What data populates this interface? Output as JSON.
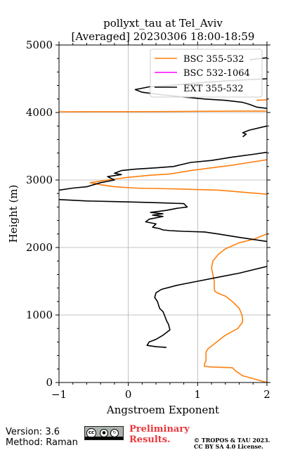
{
  "chart_data": {
    "type": "line",
    "title": "pollyxt_tau at Tel_Aviv",
    "subtitle": "[Averaged] 20230306 18:00-18:59",
    "xlabel": "Angstroem Exponent",
    "ylabel": "Height (m)",
    "xlim": [
      -1,
      2
    ],
    "ylim": [
      0,
      5000
    ],
    "x_ticks": [
      "−1",
      "0",
      "1",
      "2"
    ],
    "y_ticks": [
      "0",
      "1000",
      "2000",
      "3000",
      "4000",
      "5000"
    ],
    "grid": true,
    "legend_position": "top-right",
    "series": [
      {
        "name": "BSC 355-532",
        "color": "#ff7f0e",
        "points": [
          [
            2.0,
            0
          ],
          [
            1.65,
            100
          ],
          [
            1.55,
            170
          ],
          [
            1.5,
            220
          ],
          [
            1.2,
            230
          ],
          [
            1.1,
            240
          ],
          [
            1.1,
            280
          ],
          [
            1.12,
            320
          ],
          [
            1.12,
            380
          ],
          [
            1.12,
            450
          ],
          [
            1.15,
            500
          ],
          [
            1.25,
            580
          ],
          [
            1.4,
            700
          ],
          [
            1.58,
            800
          ],
          [
            1.65,
            900
          ],
          [
            1.64,
            1000
          ],
          [
            1.6,
            1100
          ],
          [
            1.5,
            1200
          ],
          [
            1.4,
            1280
          ],
          [
            1.3,
            1320
          ],
          [
            1.25,
            1350
          ],
          [
            1.24,
            1400
          ],
          [
            1.24,
            1500
          ],
          [
            1.22,
            1600
          ],
          [
            1.2,
            1700
          ],
          [
            1.22,
            1800
          ],
          [
            1.3,
            1900
          ],
          [
            1.4,
            1980
          ],
          [
            1.6,
            2070
          ],
          [
            1.8,
            2120
          ],
          [
            2.0,
            2200
          ]
        ]
      },
      {
        "name": "BSC 355-532",
        "color": "#ff7f0e",
        "points": [
          [
            2.0,
            2790
          ],
          [
            1.3,
            2850
          ],
          [
            0.6,
            2870
          ],
          [
            0.1,
            2880
          ],
          [
            -0.2,
            2900
          ],
          [
            -0.4,
            2930
          ],
          [
            -0.55,
            2960
          ],
          [
            -0.3,
            3000
          ],
          [
            0.0,
            3040
          ],
          [
            0.3,
            3070
          ],
          [
            0.6,
            3090
          ],
          [
            0.9,
            3140
          ],
          [
            1.2,
            3180
          ],
          [
            1.5,
            3220
          ],
          [
            1.75,
            3260
          ],
          [
            2.0,
            3300
          ]
        ]
      },
      {
        "name": "BSC 355-532",
        "color": "#ff7f0e",
        "points": [
          [
            -1.0,
            4010
          ],
          [
            -0.5,
            4012
          ],
          [
            0.0,
            4012
          ],
          [
            0.5,
            4014
          ],
          [
            1.0,
            4018
          ],
          [
            1.5,
            4020
          ],
          [
            2.0,
            4022
          ]
        ]
      },
      {
        "name": "BSC 355-532",
        "color": "#ff7f0e",
        "points": [
          [
            1.85,
            4180
          ],
          [
            1.95,
            4185
          ],
          [
            2.0,
            4190
          ]
        ]
      },
      {
        "name": "BSC 532-1064",
        "color": "#ff00ff",
        "points": []
      },
      {
        "name": "EXT 355-532",
        "color": "#000000",
        "points": [
          [
            0.55,
            520
          ],
          [
            0.4,
            530
          ],
          [
            0.27,
            550
          ],
          [
            0.3,
            600
          ],
          [
            0.4,
            640
          ],
          [
            0.5,
            700
          ],
          [
            0.6,
            780
          ],
          [
            0.58,
            860
          ],
          [
            0.55,
            920
          ],
          [
            0.52,
            1000
          ],
          [
            0.5,
            1050
          ],
          [
            0.45,
            1100
          ],
          [
            0.42,
            1200
          ],
          [
            0.38,
            1260
          ],
          [
            0.4,
            1330
          ],
          [
            0.48,
            1380
          ],
          [
            0.7,
            1440
          ],
          [
            1.0,
            1500
          ],
          [
            1.3,
            1560
          ],
          [
            1.6,
            1620
          ],
          [
            2.0,
            1720
          ]
        ]
      },
      {
        "name": "EXT 355-532",
        "color": "#000000",
        "points": [
          [
            2.0,
            2090
          ],
          [
            1.6,
            2150
          ],
          [
            1.3,
            2200
          ],
          [
            1.1,
            2230
          ],
          [
            0.8,
            2240
          ],
          [
            0.6,
            2250
          ],
          [
            0.5,
            2260
          ],
          [
            0.45,
            2280
          ],
          [
            0.35,
            2300
          ],
          [
            0.4,
            2350
          ],
          [
            0.25,
            2380
          ],
          [
            0.3,
            2420
          ],
          [
            0.4,
            2440
          ],
          [
            0.5,
            2460
          ],
          [
            0.35,
            2480
          ],
          [
            0.5,
            2500
          ],
          [
            0.32,
            2520
          ],
          [
            0.55,
            2550
          ],
          [
            0.7,
            2580
          ],
          [
            0.85,
            2600
          ],
          [
            0.8,
            2650
          ],
          [
            0.5,
            2660
          ],
          [
            0.2,
            2670
          ],
          [
            -0.2,
            2680
          ],
          [
            -0.6,
            2690
          ],
          [
            -1.0,
            2710
          ]
        ]
      },
      {
        "name": "EXT 355-532",
        "color": "#000000",
        "points": [
          [
            -1.0,
            2850
          ],
          [
            -0.8,
            2880
          ],
          [
            -0.6,
            2900
          ],
          [
            -0.5,
            2930
          ],
          [
            -0.4,
            2960
          ],
          [
            -0.2,
            3000
          ],
          [
            -0.3,
            3050
          ],
          [
            -0.1,
            3080
          ],
          [
            -0.2,
            3100
          ],
          [
            -0.1,
            3140
          ],
          [
            0.1,
            3160
          ],
          [
            0.4,
            3180
          ],
          [
            0.65,
            3200
          ],
          [
            0.9,
            3260
          ],
          [
            1.2,
            3290
          ],
          [
            1.5,
            3340
          ],
          [
            1.8,
            3380
          ],
          [
            2.0,
            3410
          ]
        ]
      },
      {
        "name": "EXT 355-532",
        "color": "#000000",
        "points": [
          [
            1.65,
            3640
          ],
          [
            1.7,
            3680
          ],
          [
            1.65,
            3700
          ],
          [
            1.7,
            3720
          ],
          [
            1.75,
            3740
          ],
          [
            2.0,
            3800
          ]
        ]
      },
      {
        "name": "EXT 355-532",
        "color": "#000000",
        "points": [
          [
            2.0,
            4060
          ],
          [
            1.85,
            4080
          ],
          [
            1.75,
            4120
          ],
          [
            1.65,
            4150
          ],
          [
            1.4,
            4180
          ],
          [
            1.1,
            4200
          ],
          [
            0.8,
            4230
          ],
          [
            0.5,
            4260
          ],
          [
            0.2,
            4300
          ],
          [
            0.1,
            4340
          ],
          [
            0.3,
            4380
          ],
          [
            0.6,
            4400
          ],
          [
            0.9,
            4430
          ],
          [
            1.3,
            4460
          ],
          [
            1.6,
            4480
          ],
          [
            2.0,
            4500
          ]
        ]
      },
      {
        "name": "EXT 355-532",
        "color": "#000000",
        "points": [
          [
            1.75,
            4780
          ],
          [
            1.9,
            4800
          ],
          [
            2.0,
            4810
          ]
        ]
      }
    ],
    "legend": [
      {
        "label": "BSC 355-532",
        "color": "#ff7f0e"
      },
      {
        "label": "BSC 532-1064",
        "color": "#ff00ff"
      },
      {
        "label": "EXT 355-532",
        "color": "#000000"
      }
    ]
  },
  "footer": {
    "version": "Version: 3.6",
    "method": "Method: Raman",
    "preliminary_line1": "Preliminary",
    "preliminary_line2": "Results.",
    "copyright_line1": "© TROPOS & TAU 2023.",
    "copyright_line2": "CC BY SA 4.0 License.",
    "cc_badge": {
      "main": "cc",
      "by": "BY",
      "sa": "SA"
    }
  }
}
